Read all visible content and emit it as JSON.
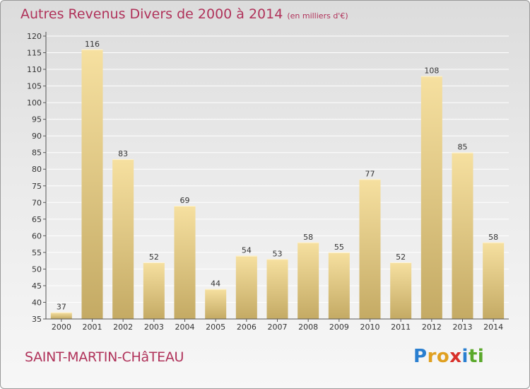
{
  "title": {
    "main": "Autres Revenus Divers de 2000 à 2014",
    "unit": "(en milliers d'€)"
  },
  "place_name": "SAINT-MARTIN-CHâTEAU",
  "logo": {
    "text": "Proxiti",
    "letters": [
      {
        "ch": "P",
        "color": "#2a7fd0"
      },
      {
        "ch": "r",
        "color": "#e0a020"
      },
      {
        "ch": "o",
        "color": "#e0a020"
      },
      {
        "ch": "x",
        "color": "#d8302a"
      },
      {
        "ch": "i",
        "color": "#2a7fd0"
      },
      {
        "ch": "t",
        "color": "#5aa82a"
      },
      {
        "ch": "i",
        "color": "#5aa82a"
      }
    ]
  },
  "colors": {
    "accent": "#b0325a",
    "bar_light": "#f6e0a0",
    "bar_dark": "#c4aa64",
    "grid": "#ffffff",
    "axis": "#555555"
  },
  "chart_data": {
    "type": "bar",
    "title": "Autres Revenus Divers de 2000 à 2014",
    "subtitle": "(en milliers d'€)",
    "xlabel": "",
    "ylabel": "",
    "categories": [
      "2000",
      "2001",
      "2002",
      "2003",
      "2004",
      "2005",
      "2006",
      "2007",
      "2008",
      "2009",
      "2010",
      "2011",
      "2012",
      "2013",
      "2014"
    ],
    "values": [
      37,
      116,
      83,
      52,
      69,
      44,
      54,
      53,
      58,
      55,
      77,
      52,
      108,
      85,
      58
    ],
    "ylim": [
      35,
      120
    ],
    "yticks": [
      35,
      40,
      45,
      50,
      55,
      60,
      65,
      70,
      75,
      80,
      85,
      90,
      95,
      100,
      105,
      110,
      115,
      120
    ],
    "grid": true,
    "legend": "none",
    "data_labels": true
  }
}
